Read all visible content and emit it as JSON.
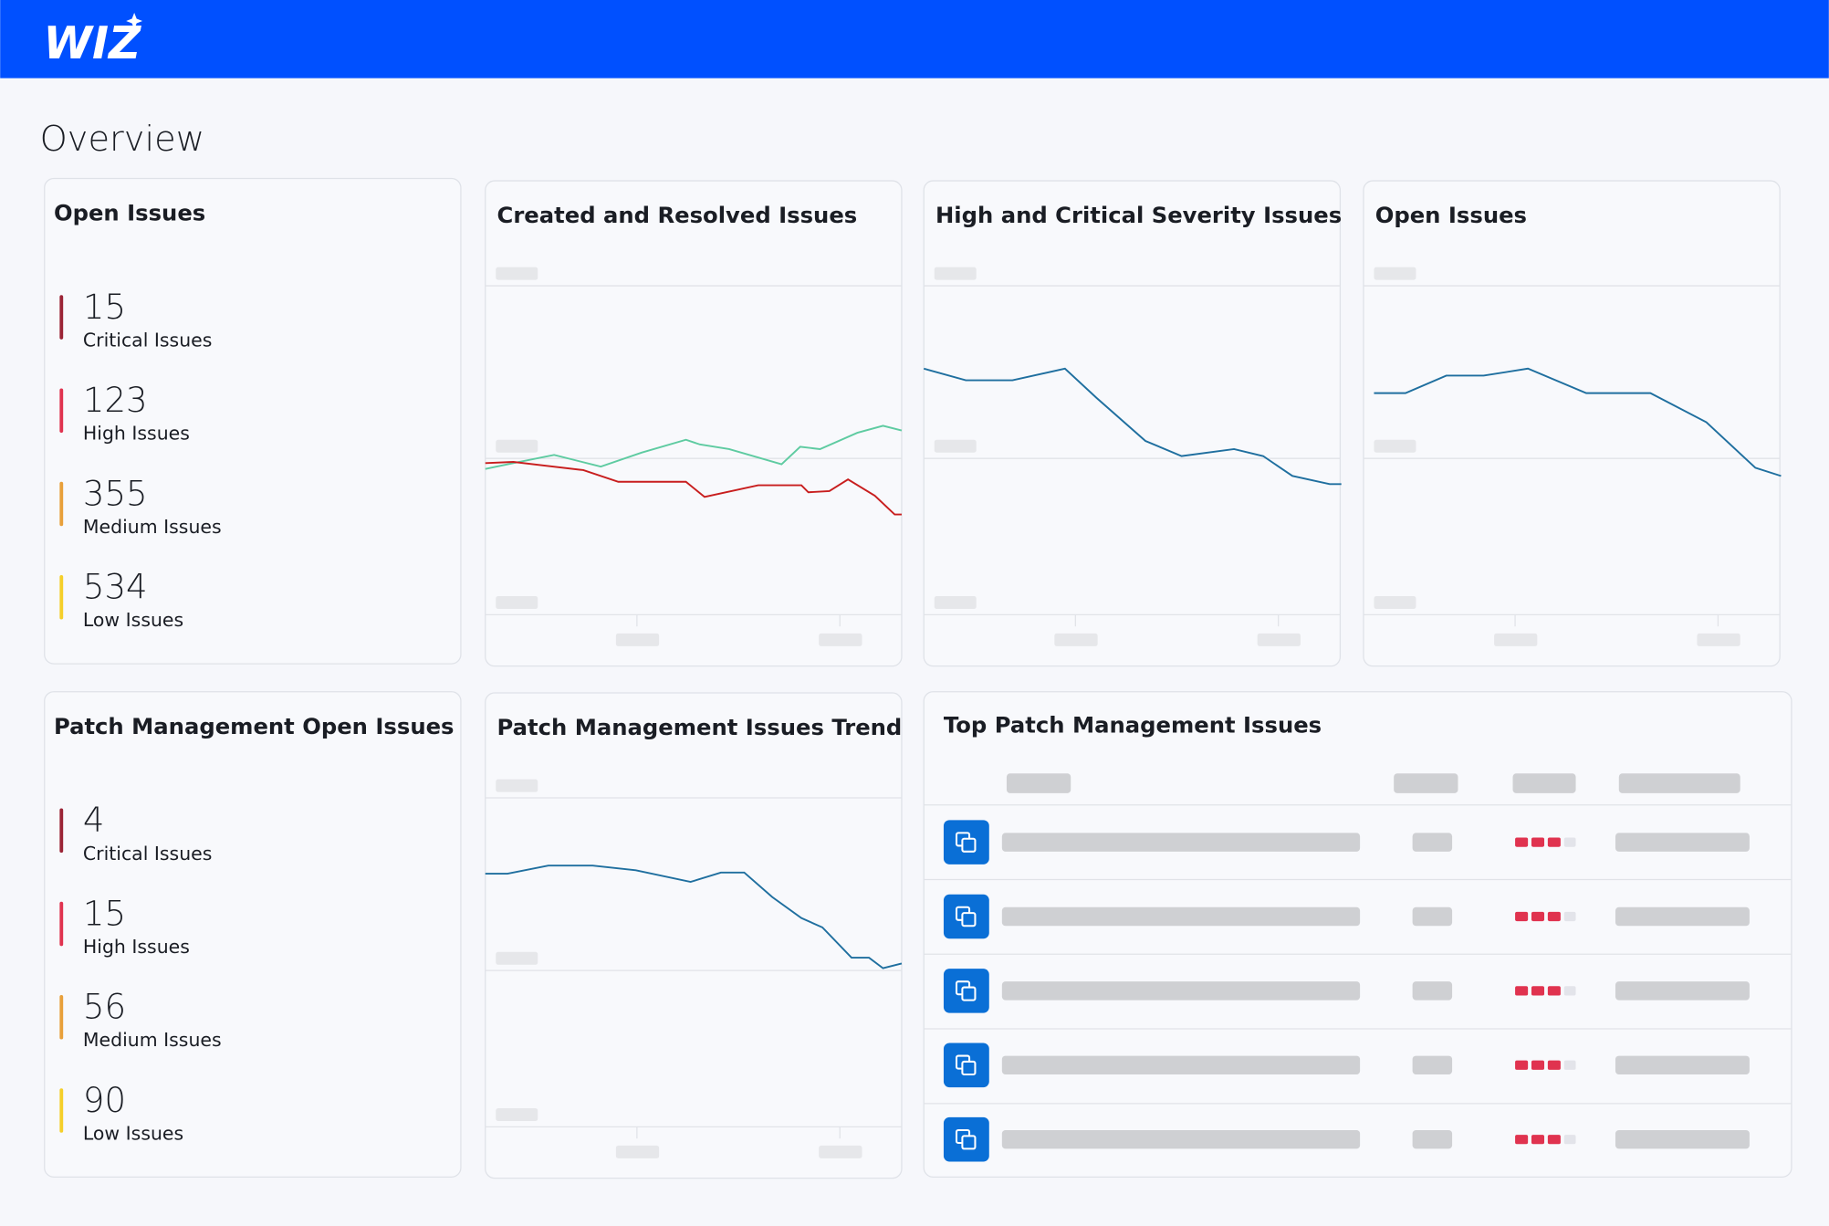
{
  "header": {
    "logo": "WIZ"
  },
  "page_title": "Overview",
  "summary_cards": [
    {
      "title": "Open Issues",
      "items": [
        {
          "value": "15",
          "label": "Critical Issues",
          "color": "#9b2335"
        },
        {
          "value": "123",
          "label": "High Issues",
          "color": "#e0334f"
        },
        {
          "value": "355",
          "label": "Medium Issues",
          "color": "#e8a03a"
        },
        {
          "value": "534",
          "label": "Low Issues",
          "color": "#f5cf2a"
        }
      ]
    },
    {
      "title": "Patch Management Open Issues",
      "items": [
        {
          "value": "4",
          "label": "Critical Issues",
          "color": "#9b2335"
        },
        {
          "value": "15",
          "label": "High Issues",
          "color": "#e0334f"
        },
        {
          "value": "56",
          "label": "Medium Issues",
          "color": "#e8a03a"
        },
        {
          "value": "90",
          "label": "Low Issues",
          "color": "#f5cf2a"
        }
      ]
    }
  ],
  "chart_cards": [
    {
      "title": "Created and Resolved Issues"
    },
    {
      "title": "High and Critical Severity Issues"
    },
    {
      "title": "Open Issues"
    },
    {
      "title": "Patch Management Issues Trend"
    }
  ],
  "table": {
    "title": "Top Patch Management Issues"
  }
}
